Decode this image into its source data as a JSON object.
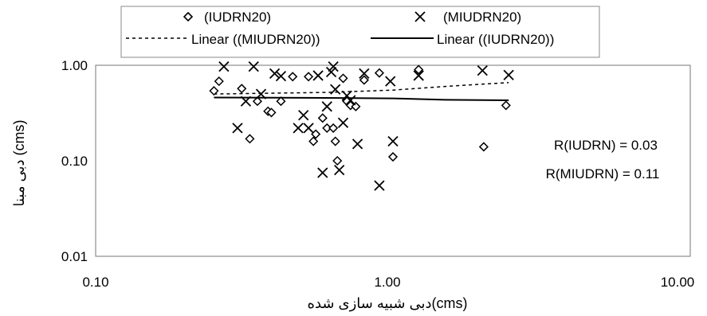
{
  "chart_data": {
    "type": "scatter",
    "title": "",
    "xlabel": "دبی شبیه سازی شده(cms)",
    "ylabel": "دبی مبنا (cms)",
    "xscale": "log",
    "yscale": "log",
    "xlim": [
      0.1,
      10
    ],
    "ylim": [
      0.01,
      1
    ],
    "x_ticks": [
      0.1,
      1,
      10
    ],
    "x_tick_labels": [
      "0.10",
      "1.00",
      "10.00"
    ],
    "y_ticks": [
      0.01,
      0.1,
      1
    ],
    "y_tick_labels": [
      "0.01",
      "0.10",
      "1.00"
    ],
    "grid": false,
    "legend_position": "top",
    "legend": [
      {
        "label": "(IUDRN20)",
        "symbol": "diamond"
      },
      {
        "label": "(MIUDRN20)",
        "symbol": "x"
      },
      {
        "label": "Linear ((MIUDRN20))",
        "symbol": "dotted-line"
      },
      {
        "label": "Linear ((IUDRN20))",
        "symbol": "solid-line"
      }
    ],
    "annotations": [
      "R(IUDRN) = 0.03",
      "R(MIUDRN) = 0.11"
    ],
    "series": [
      {
        "name": "(IUDRN20)",
        "marker": "diamond",
        "points": [
          [
            0.25,
            0.54
          ],
          [
            0.26,
            0.68
          ],
          [
            0.31,
            0.57
          ],
          [
            0.33,
            0.17
          ],
          [
            0.35,
            0.42
          ],
          [
            0.38,
            0.33
          ],
          [
            0.39,
            0.32
          ],
          [
            0.42,
            0.42
          ],
          [
            0.46,
            0.76
          ],
          [
            0.52,
            0.76
          ],
          [
            0.54,
            0.16
          ],
          [
            0.55,
            0.19
          ],
          [
            0.58,
            0.28
          ],
          [
            0.6,
            0.22
          ],
          [
            0.63,
            0.22
          ],
          [
            0.64,
            0.16
          ],
          [
            0.65,
            0.1
          ],
          [
            0.68,
            0.73
          ],
          [
            0.7,
            0.42
          ],
          [
            0.72,
            0.38
          ],
          [
            0.75,
            0.37
          ],
          [
            0.8,
            0.7
          ],
          [
            0.9,
            0.83
          ],
          [
            1.0,
            0.11
          ],
          [
            1.22,
            0.9
          ],
          [
            2.02,
            0.14
          ],
          [
            2.4,
            0.38
          ]
        ]
      },
      {
        "name": "(MIUDRN20)",
        "marker": "x",
        "points": [
          [
            0.27,
            0.97
          ],
          [
            0.3,
            0.22
          ],
          [
            0.32,
            0.42
          ],
          [
            0.34,
            0.97
          ],
          [
            0.36,
            0.5
          ],
          [
            0.4,
            0.82
          ],
          [
            0.42,
            0.77
          ],
          [
            0.48,
            0.22
          ],
          [
            0.5,
            0.3
          ],
          [
            0.52,
            0.22
          ],
          [
            0.56,
            0.78
          ],
          [
            0.58,
            0.075
          ],
          [
            0.6,
            0.37
          ],
          [
            0.62,
            0.85
          ],
          [
            0.63,
            0.97
          ],
          [
            0.64,
            0.56
          ],
          [
            0.66,
            0.08
          ],
          [
            0.68,
            0.25
          ],
          [
            0.7,
            0.48
          ],
          [
            0.72,
            0.43
          ],
          [
            0.76,
            0.15
          ],
          [
            0.8,
            0.82
          ],
          [
            0.9,
            0.055
          ],
          [
            0.98,
            0.68
          ],
          [
            1.0,
            0.16
          ],
          [
            1.22,
            0.78
          ],
          [
            2.0,
            0.88
          ],
          [
            2.45,
            0.79
          ]
        ]
      },
      {
        "name": "Linear ((MIUDRN20))",
        "type": "line",
        "style": "dotted",
        "points": [
          [
            0.25,
            0.5
          ],
          [
            0.6,
            0.52
          ],
          [
            1.0,
            0.55
          ],
          [
            1.5,
            0.6
          ],
          [
            2.45,
            0.66
          ]
        ]
      },
      {
        "name": "Linear ((IUDRN20))",
        "type": "line",
        "style": "solid",
        "points": [
          [
            0.25,
            0.46
          ],
          [
            0.6,
            0.455
          ],
          [
            1.0,
            0.45
          ],
          [
            1.5,
            0.435
          ],
          [
            2.45,
            0.43
          ]
        ]
      }
    ]
  }
}
